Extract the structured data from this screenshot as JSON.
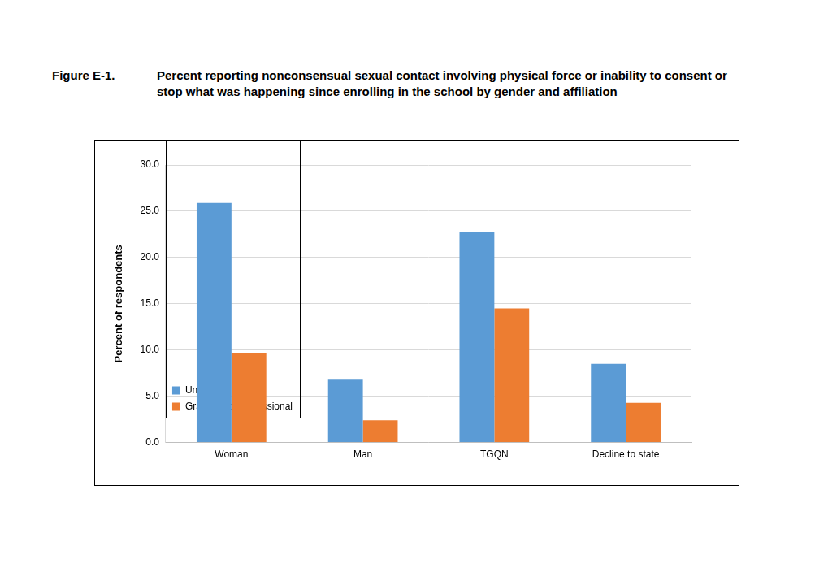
{
  "chart_data": {
    "type": "bar",
    "figure_label": "Figure E-1.",
    "title": "Percent reporting nonconsensual sexual contact involving physical force or inability to consent or stop what was happening since enrolling in the school by gender and affiliation",
    "y_label": "Percent of respondents",
    "categories": [
      "Woman",
      "Man",
      "TGQN",
      "Decline to state"
    ],
    "series": [
      {
        "name": "Undergraduate",
        "color": "#5b9bd5",
        "values": [
          25.9,
          6.8,
          22.8,
          8.5
        ]
      },
      {
        "name": "Graduate or professional",
        "color": "#ed7d31",
        "values": [
          9.7,
          2.4,
          14.5,
          4.3
        ]
      }
    ],
    "ylim": [
      0,
      30
    ],
    "yticks": [
      {
        "value": 0,
        "label": "0.0"
      },
      {
        "value": 5,
        "label": "5.0"
      },
      {
        "value": 10,
        "label": "10.0"
      },
      {
        "value": 15,
        "label": "15.0"
      },
      {
        "value": 20,
        "label": "20.0"
      },
      {
        "value": 25,
        "label": "25.0"
      },
      {
        "value": 30,
        "label": "30.0"
      }
    ],
    "grid": true,
    "legend": "upper right"
  }
}
